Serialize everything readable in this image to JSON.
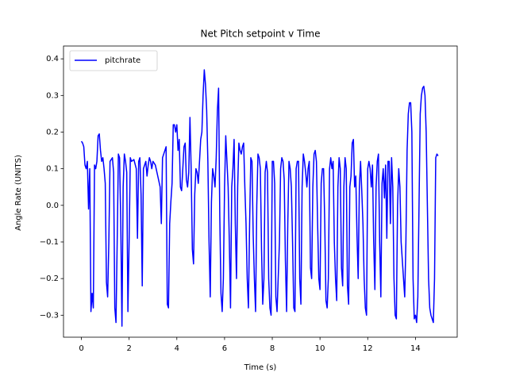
{
  "chart_data": {
    "type": "line",
    "title": "Net Pitch setpoint v Time",
    "x_label": "Time (s)",
    "y_label": "Angle Rate (UNITS)",
    "xlim": [
      -0.75,
      15.75
    ],
    "ylim": [
      -0.36,
      0.435
    ],
    "xticks": [
      0,
      2,
      4,
      6,
      8,
      10,
      12,
      14
    ],
    "yticks": [
      {
        "value": -0.3,
        "label": "−0.3"
      },
      {
        "value": -0.2,
        "label": "−0.2"
      },
      {
        "value": -0.1,
        "label": "−0.1"
      },
      {
        "value": 0,
        "label": "0.0"
      },
      0.1,
      0.2,
      0.3,
      0.4
    ],
    "legend": "upper left",
    "series": [
      {
        "name": "pitchrate",
        "color": "#0000ff",
        "x": [
          0,
          0.05,
          0.1,
          0.15,
          0.2,
          0.25,
          0.3,
          0.35,
          0.4,
          0.45,
          0.5,
          0.55,
          0.6,
          0.65,
          0.7,
          0.75,
          0.8,
          0.85,
          0.9,
          0.95,
          1.0,
          1.05,
          1.1,
          1.15,
          1.2,
          1.3,
          1.35,
          1.4,
          1.45,
          1.5,
          1.55,
          1.6,
          1.65,
          1.7,
          1.75,
          1.8,
          1.85,
          1.9,
          1.95,
          2.0,
          2.05,
          2.1,
          2.2,
          2.3,
          2.35,
          2.4,
          2.45,
          2.5,
          2.55,
          2.6,
          2.7,
          2.75,
          2.8,
          2.85,
          2.9,
          2.95,
          3.0,
          3.1,
          3.2,
          3.3,
          3.35,
          3.4,
          3.45,
          3.5,
          3.55,
          3.6,
          3.65,
          3.7,
          3.75,
          3.8,
          3.85,
          3.9,
          3.95,
          4.0,
          4.05,
          4.1,
          4.15,
          4.2,
          4.25,
          4.3,
          4.35,
          4.4,
          4.45,
          4.5,
          4.55,
          4.6,
          4.65,
          4.7,
          4.75,
          4.8,
          4.85,
          4.9,
          5.0,
          5.05,
          5.1,
          5.15,
          5.2,
          5.25,
          5.3,
          5.35,
          5.4,
          5.45,
          5.5,
          5.55,
          5.6,
          5.65,
          5.7,
          5.75,
          5.8,
          5.85,
          5.9,
          5.95,
          6.0,
          6.05,
          6.1,
          6.15,
          6.2,
          6.25,
          6.3,
          6.35,
          6.4,
          6.45,
          6.5,
          6.55,
          6.6,
          6.65,
          6.7,
          6.75,
          6.8,
          6.85,
          6.9,
          6.95,
          7.0,
          7.05,
          7.1,
          7.15,
          7.2,
          7.25,
          7.3,
          7.35,
          7.4,
          7.45,
          7.5,
          7.55,
          7.6,
          7.65,
          7.7,
          7.75,
          7.8,
          7.85,
          7.9,
          7.95,
          8.0,
          8.05,
          8.1,
          8.15,
          8.2,
          8.3,
          8.35,
          8.4,
          8.45,
          8.5,
          8.55,
          8.6,
          8.65,
          8.7,
          8.75,
          8.8,
          8.85,
          8.9,
          8.95,
          9.0,
          9.05,
          9.1,
          9.15,
          9.2,
          9.25,
          9.3,
          9.35,
          9.4,
          9.45,
          9.5,
          9.55,
          9.6,
          9.65,
          9.7,
          9.75,
          9.8,
          9.85,
          9.9,
          9.95,
          10.0,
          10.05,
          10.1,
          10.15,
          10.2,
          10.25,
          10.3,
          10.35,
          10.4,
          10.45,
          10.5,
          10.55,
          10.6,
          10.65,
          10.7,
          10.75,
          10.8,
          10.85,
          10.9,
          10.95,
          11.0,
          11.05,
          11.1,
          11.15,
          11.2,
          11.25,
          11.3,
          11.35,
          11.4,
          11.45,
          11.5,
          11.55,
          11.6,
          11.65,
          11.7,
          11.75,
          11.8,
          11.85,
          11.9,
          11.95,
          12.0,
          12.05,
          12.1,
          12.15,
          12.2,
          12.25,
          12.3,
          12.35,
          12.4,
          12.45,
          12.5,
          12.55,
          12.6,
          12.65,
          12.7,
          12.75,
          12.8,
          12.85,
          12.9,
          12.95,
          13.0,
          13.05,
          13.1,
          13.15,
          13.2,
          13.25,
          13.3,
          13.35,
          13.4,
          13.5,
          13.55,
          13.6,
          13.65,
          13.7,
          13.75,
          13.8,
          13.85,
          13.9,
          13.95,
          14.0,
          14.05,
          14.1,
          14.2,
          14.25,
          14.3,
          14.35,
          14.4,
          14.45,
          14.5,
          14.55,
          14.6,
          14.65,
          14.7,
          14.75,
          14.8,
          14.85,
          14.9,
          14.95
        ],
        "values": [
          0.175,
          0.17,
          0.16,
          0.11,
          0.1,
          0.12,
          -0.01,
          0.1,
          -0.29,
          -0.24,
          -0.28,
          0.11,
          0.1,
          0.12,
          0.19,
          0.195,
          0.15,
          0.12,
          0.13,
          0.1,
          0.06,
          -0.21,
          -0.25,
          -0.1,
          0.12,
          0.13,
          0.09,
          -0.28,
          -0.32,
          -0.1,
          0.14,
          0.13,
          -0.05,
          -0.33,
          0.05,
          0.14,
          0.12,
          0.09,
          -0.29,
          -0.1,
          0.13,
          0.12,
          0.125,
          0.1,
          -0.09,
          0.12,
          0.13,
          0.03,
          -0.22,
          0.1,
          0.12,
          0.08,
          0.11,
          0.13,
          0.12,
          0.1,
          0.12,
          0.11,
          0.08,
          0.05,
          -0.05,
          0.13,
          0.14,
          0.15,
          0.16,
          -0.27,
          -0.28,
          -0.05,
          0.01,
          0.06,
          0.22,
          0.22,
          0.2,
          0.22,
          0.15,
          0.18,
          0.05,
          0.04,
          0.1,
          0.16,
          0.17,
          0.07,
          0.05,
          0.09,
          0.24,
          0.1,
          -0.12,
          -0.16,
          0.03,
          0.1,
          0.09,
          0.06,
          0.18,
          0.2,
          0.3,
          0.37,
          0.33,
          0.26,
          0.12,
          -0.1,
          -0.25,
          0.01,
          0.1,
          0.08,
          0.05,
          0.13,
          0.26,
          0.32,
          -0.03,
          -0.24,
          -0.29,
          -0.2,
          0.05,
          0.19,
          0.12,
          0.05,
          -0.1,
          -0.28,
          0.05,
          0.1,
          0.18,
          -0.05,
          -0.2,
          0.05,
          0.17,
          0.15,
          0.14,
          0.16,
          0.17,
          0.05,
          -0.05,
          -0.2,
          -0.28,
          -0.05,
          0.13,
          0.12,
          -0.08,
          -0.2,
          -0.29,
          0.0,
          0.14,
          0.13,
          0.1,
          -0.12,
          -0.27,
          -0.2,
          0.09,
          0.12,
          0.09,
          -0.2,
          -0.28,
          -0.3,
          0.12,
          0.12,
          0.06,
          -0.25,
          -0.29,
          -0.1,
          0.1,
          0.13,
          0.12,
          0.07,
          -0.15,
          -0.29,
          -0.05,
          0.12,
          0.1,
          0.05,
          -0.1,
          -0.28,
          -0.29,
          0.1,
          0.12,
          0.12,
          -0.2,
          -0.27,
          0.05,
          0.14,
          0.12,
          0.09,
          0.05,
          0.1,
          0.12,
          -0.17,
          -0.2,
          0.05,
          0.14,
          0.15,
          0.12,
          -0.05,
          -0.2,
          -0.23,
          0.06,
          0.1,
          0.1,
          -0.05,
          -0.26,
          -0.28,
          -0.2,
          0.1,
          0.13,
          0.1,
          0.12,
          -0.1,
          -0.2,
          -0.26,
          0.05,
          0.13,
          0.1,
          -0.17,
          -0.22,
          0.05,
          0.13,
          0.1,
          -0.22,
          -0.27,
          0.05,
          0.08,
          0.17,
          0.18,
          0.05,
          0.08,
          -0.08,
          -0.2,
          0.05,
          0.12,
          0.04,
          -0.05,
          -0.2,
          -0.28,
          -0.3,
          0.1,
          0.12,
          0.1,
          0.05,
          0.11,
          -0.1,
          -0.23,
          0.05,
          0.12,
          0.14,
          -0.1,
          -0.25,
          0.06,
          0.1,
          0.02,
          0.11,
          -0.09,
          0.12,
          0.12,
          -0.05,
          0.13,
          0.05,
          -0.2,
          -0.3,
          -0.31,
          0.0,
          0.1,
          0.05,
          -0.1,
          -0.2,
          -0.25,
          -0.1,
          0.15,
          0.25,
          0.28,
          0.28,
          0.2,
          -0.2,
          -0.31,
          -0.3,
          -0.32,
          -0.25,
          0.25,
          0.3,
          0.32,
          0.325,
          0.3,
          0.2,
          0.0,
          -0.2,
          -0.28,
          -0.3,
          -0.31,
          -0.32,
          -0.2,
          0.13,
          0.14,
          0.135
        ]
      }
    ]
  }
}
